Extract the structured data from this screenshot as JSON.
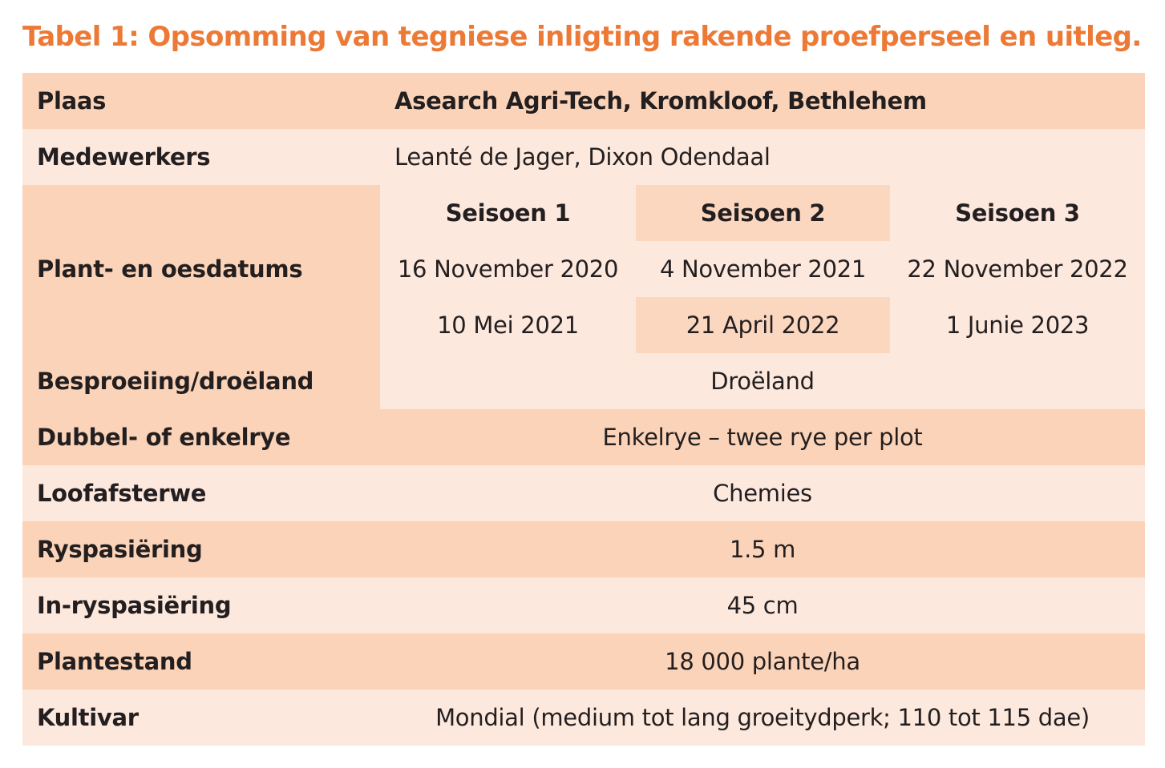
{
  "caption": "Tabel 1: Opsomming van tegniese inligting rakende proefperseel en uitleg.",
  "rows": {
    "plaas": {
      "label": "Plaas",
      "value": "Asearch Agri-Tech, Kromkloof, Bethlehem"
    },
    "medewerkers": {
      "label": "Medewerkers",
      "value": "Leanté de Jager, Dixon Odendaal"
    },
    "datums": {
      "label": "Plant- en oesdatums",
      "seasons": [
        {
          "name": "Seisoen 1",
          "plant": "16 November 2020",
          "oes": "10 Mei 2021"
        },
        {
          "name": "Seisoen 2",
          "plant": "4 November 2021",
          "oes": "21 April 2022"
        },
        {
          "name": "Seisoen 3",
          "plant": "22 November 2022",
          "oes": "1 Junie 2023"
        }
      ]
    },
    "besproeiing": {
      "label": "Besproeiing/droëland",
      "value": "Droëland"
    },
    "rye": {
      "label": "Dubbel- of enkelrye",
      "value": "Enkelrye – twee rye per plot"
    },
    "loofafsterwe": {
      "label": "Loofafsterwe",
      "value": "Chemies"
    },
    "ryspasiering": {
      "label": "Ryspasiëring",
      "value": "1.5 m"
    },
    "inryspasiering": {
      "label": "In-ryspasiëring",
      "value": "45 cm"
    },
    "plantestand": {
      "label": "Plantestand",
      "value": "18 000 plante/ha"
    },
    "kultivar": {
      "label": "Kultivar",
      "value": "Mondial (medium tot lang groeitydperk; 110 tot 115 dae)"
    }
  }
}
